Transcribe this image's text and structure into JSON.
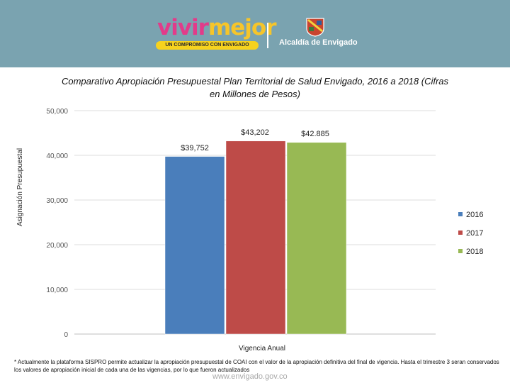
{
  "header": {
    "logo_text_part1": "vivir",
    "logo_text_part2": "mejor",
    "logo_tagline": "UN COMPROMISO CON ENVIGADO",
    "municipality": "Alcaldía de Envigado",
    "background_color": "#7aa3b0"
  },
  "chart_data": {
    "type": "bar",
    "title": "Comparativo Apropiación Presupuestal Plan Territorial de Salud Envigado, 2016 a 2018 (Cifras en Millones de Pesos)",
    "xlabel": "Vigencia Anual",
    "ylabel": "Asignación Presupuestal",
    "ylim": [
      0,
      50000
    ],
    "yticks": [
      0,
      10000,
      20000,
      30000,
      40000,
      50000
    ],
    "ytick_labels": [
      "0",
      "10,000",
      "20,000",
      "30,000",
      "40,000",
      "50,000"
    ],
    "grid": true,
    "legend_position": "right",
    "series": [
      {
        "name": "2016",
        "value": 39752,
        "label": "$39,752",
        "color": "#4a7ebb"
      },
      {
        "name": "2017",
        "value": 43202,
        "label": "$43,202",
        "color": "#be4b48"
      },
      {
        "name": "2018",
        "value": 42885,
        "label": "$42.885",
        "color": "#98b954"
      }
    ]
  },
  "footer": {
    "note": "* Actualmente la plataforma SISPRO permite actualizar la apropiación presupuestal de COAI con el valor de la apropiación definitiva del final de vigencia. Hasta el trimestre 3 seran conservados los valores de apropiación inicial de cada una de las vigencias, por lo que fueron actualizados",
    "url": "www.envigado.gov.co"
  }
}
